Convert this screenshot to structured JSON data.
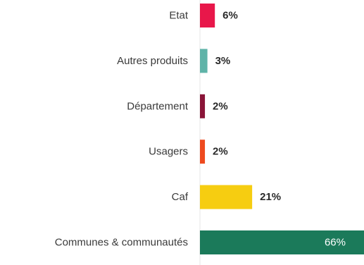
{
  "chart_data": {
    "type": "bar",
    "orientation": "horizontal",
    "categories": [
      "Etat",
      "Autres produits",
      "Département",
      "Usagers",
      "Caf",
      "Communes & communautés"
    ],
    "values": [
      6,
      3,
      2,
      2,
      21,
      66
    ],
    "value_labels": [
      "6%",
      "3%",
      "2%",
      "2%",
      "21%",
      "66%"
    ],
    "unit": "%",
    "colors": [
      "#e8174a",
      "#5fb3a8",
      "#8a1538",
      "#ee4a1f",
      "#f6cd11",
      "#1b7a5a"
    ],
    "xlim": [
      0,
      66
    ],
    "grid": false,
    "legend": "none"
  }
}
